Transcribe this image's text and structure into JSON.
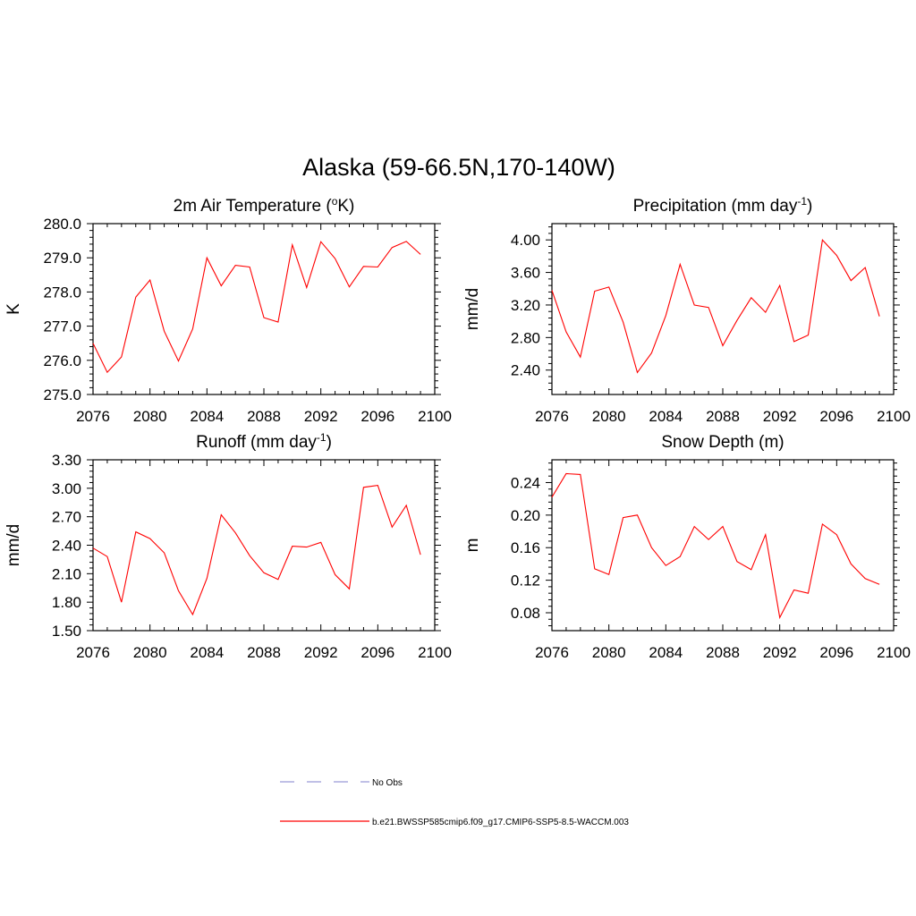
{
  "page_title": "Alaska (59-66.5N,170-140W)",
  "legend": [
    {
      "label": "No Obs",
      "color": "#9a9ad8",
      "dash": true
    },
    {
      "label": "b.e21.BWSSP585cmip6.f09_g17.CMIP6-SSP5-8.5-WACCM.003",
      "color": "#ff0000",
      "dash": false
    }
  ],
  "chart_data": [
    {
      "type": "line",
      "title": "2m Air Temperature (",
      "title_sup": "o",
      "title_tail": "K)",
      "title_sup_is_prefix": true,
      "ylabel": "K",
      "xlim": [
        2076,
        2100
      ],
      "ylim": [
        275.0,
        280.0
      ],
      "xticks": [
        2076,
        2080,
        2084,
        2088,
        2092,
        2096,
        2100
      ],
      "yticks": [
        275.0,
        276.0,
        277.0,
        278.0,
        279.0,
        280.0
      ],
      "ytick_labels": [
        "275.0",
        "276.0",
        "277.0",
        "278.0",
        "279.0",
        "280.0"
      ],
      "x": [
        2076,
        2077,
        2078,
        2079,
        2080,
        2081,
        2082,
        2083,
        2084,
        2085,
        2086,
        2087,
        2088,
        2089,
        2090,
        2091,
        2092,
        2093,
        2094,
        2095,
        2096,
        2097,
        2098,
        2099
      ],
      "series": [
        {
          "values": [
            276.5,
            275.65,
            276.1,
            277.85,
            278.35,
            276.85,
            275.98,
            276.92,
            279.0,
            278.18,
            278.78,
            278.73,
            277.25,
            277.12,
            279.38,
            278.13,
            279.47,
            278.98,
            278.15,
            278.75,
            278.73,
            279.3,
            279.48,
            279.1
          ]
        }
      ]
    },
    {
      "type": "line",
      "title": "Precipitation (mm day",
      "title_sup": "-1",
      "title_tail": ")",
      "ylabel": "mm/d",
      "xlim": [
        2076,
        2100
      ],
      "ylim": [
        2.1,
        4.2
      ],
      "xticks": [
        2076,
        2080,
        2084,
        2088,
        2092,
        2096,
        2100
      ],
      "yticks": [
        2.4,
        2.8,
        3.2,
        3.6,
        4.0
      ],
      "ytick_labels": [
        "2.40",
        "2.80",
        "3.20",
        "3.60",
        "4.00"
      ],
      "x": [
        2076,
        2077,
        2078,
        2079,
        2080,
        2081,
        2082,
        2083,
        2084,
        2085,
        2086,
        2087,
        2088,
        2089,
        2090,
        2091,
        2092,
        2093,
        2094,
        2095,
        2096,
        2097,
        2098,
        2099
      ],
      "series": [
        {
          "values": [
            3.38,
            2.87,
            2.56,
            3.37,
            3.42,
            2.99,
            2.37,
            2.61,
            3.07,
            3.7,
            3.2,
            3.17,
            2.7,
            3.01,
            3.29,
            3.11,
            3.44,
            2.75,
            2.83,
            4.0,
            3.81,
            3.5,
            3.66,
            3.06
          ]
        }
      ]
    },
    {
      "type": "line",
      "title": "Runoff (mm day",
      "title_sup": "-1",
      "title_tail": ")",
      "ylabel": "mm/d",
      "xlim": [
        2076,
        2100
      ],
      "ylim": [
        1.5,
        3.3
      ],
      "xticks": [
        2076,
        2080,
        2084,
        2088,
        2092,
        2096,
        2100
      ],
      "yticks": [
        1.5,
        1.8,
        2.1,
        2.4,
        2.7,
        3.0,
        3.3
      ],
      "ytick_labels": [
        "1.50",
        "1.80",
        "2.10",
        "2.40",
        "2.70",
        "3.00",
        "3.30"
      ],
      "x": [
        2076,
        2077,
        2078,
        2079,
        2080,
        2081,
        2082,
        2083,
        2084,
        2085,
        2086,
        2087,
        2088,
        2089,
        2090,
        2091,
        2092,
        2093,
        2094,
        2095,
        2096,
        2097,
        2098,
        2099
      ],
      "series": [
        {
          "values": [
            2.37,
            2.28,
            1.8,
            2.54,
            2.47,
            2.32,
            1.92,
            1.67,
            2.05,
            2.72,
            2.53,
            2.29,
            2.11,
            2.04,
            2.39,
            2.38,
            2.43,
            2.09,
            1.94,
            3.01,
            3.03,
            2.59,
            2.82,
            2.3
          ]
        }
      ]
    },
    {
      "type": "line",
      "title": "Snow Depth (m)",
      "title_sup": "",
      "title_tail": "",
      "ylabel": "m",
      "xlim": [
        2076,
        2100
      ],
      "ylim": [
        0.058,
        0.268
      ],
      "xticks": [
        2076,
        2080,
        2084,
        2088,
        2092,
        2096,
        2100
      ],
      "yticks": [
        0.08,
        0.12,
        0.16,
        0.2,
        0.24
      ],
      "ytick_labels": [
        "0.08",
        "0.12",
        "0.16",
        "0.20",
        "0.24"
      ],
      "x": [
        2076,
        2077,
        2078,
        2079,
        2080,
        2081,
        2082,
        2083,
        2084,
        2085,
        2086,
        2087,
        2088,
        2089,
        2090,
        2091,
        2092,
        2093,
        2094,
        2095,
        2096,
        2097,
        2098,
        2099
      ],
      "series": [
        {
          "values": [
            0.222,
            0.251,
            0.25,
            0.134,
            0.127,
            0.197,
            0.2,
            0.16,
            0.138,
            0.149,
            0.186,
            0.17,
            0.186,
            0.143,
            0.133,
            0.176,
            0.074,
            0.108,
            0.104,
            0.189,
            0.176,
            0.14,
            0.122,
            0.115
          ]
        }
      ]
    }
  ]
}
